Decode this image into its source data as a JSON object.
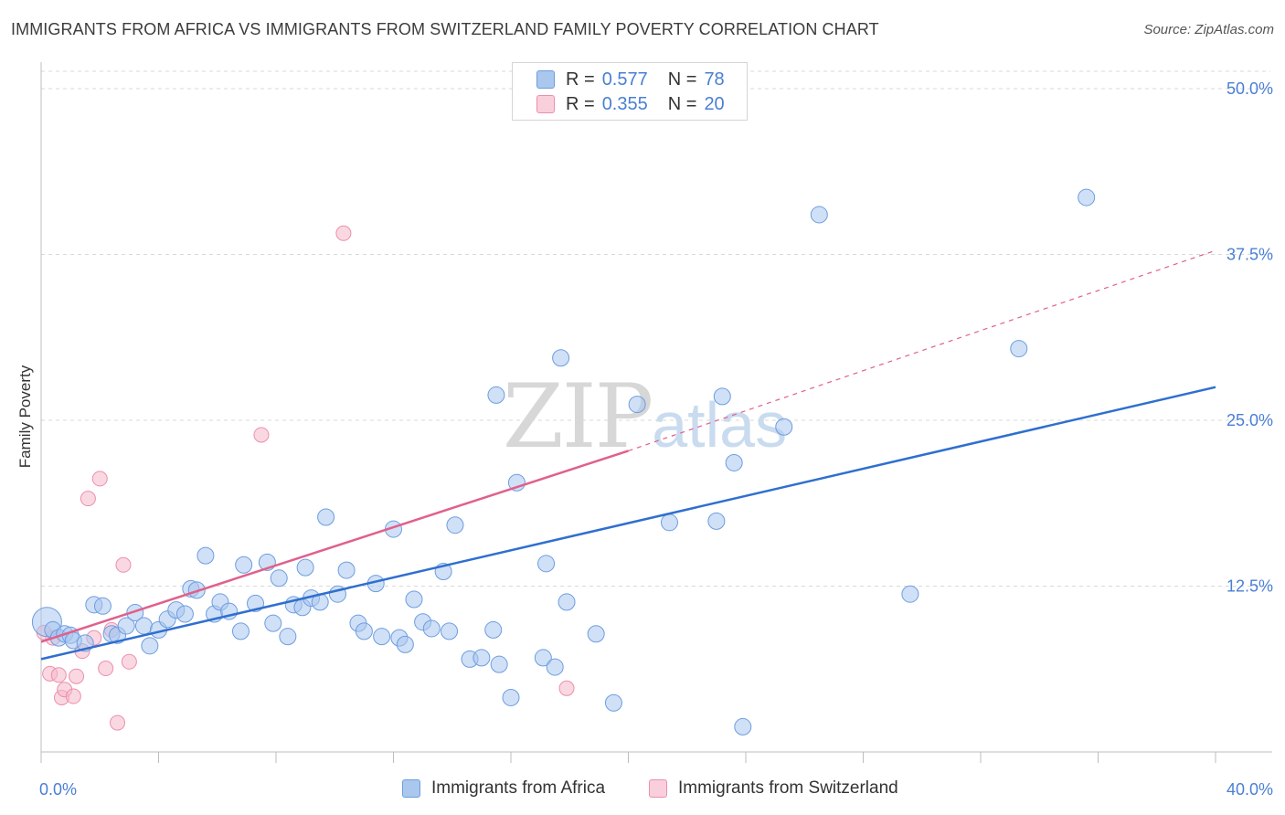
{
  "title": "IMMIGRANTS FROM AFRICA VS IMMIGRANTS FROM SWITZERLAND FAMILY POVERTY CORRELATION CHART",
  "source": "Source: ZipAtlas.com",
  "watermark": {
    "zip": "ZIP",
    "atlas": "atlas"
  },
  "legend_top": [
    {
      "r_label": "R =",
      "r_value": "0.577",
      "n_label": "N =",
      "n_value": "78"
    },
    {
      "r_label": "R =",
      "r_value": "0.355",
      "n_label": "N =",
      "n_value": "20"
    }
  ],
  "colors": {
    "africa_fill": "#aac7ee",
    "africa_stroke": "#6d9de0",
    "africa_line": "#2f6fcf",
    "swiss_fill": "#f6b8ca",
    "swiss_stroke": "#ec8fab",
    "swiss_line": "#e0608c",
    "tick_label": "#4a7fd4",
    "grid": "#d9d9d9"
  },
  "chart_data": {
    "type": "scatter",
    "title": "IMMIGRANTS FROM AFRICA VS IMMIGRANTS FROM SWITZERLAND FAMILY POVERTY CORRELATION CHART",
    "xlabel": "",
    "ylabel": "Family Poverty",
    "xlim": [
      0,
      40
    ],
    "ylim": [
      0,
      50
    ],
    "x_tick_labels": [
      "0.0%",
      "40.0%"
    ],
    "y_ticks": [
      12.5,
      25.0,
      37.5,
      50.0
    ],
    "y_tick_labels": [
      "12.5%",
      "25.0%",
      "37.5%",
      "50.0%"
    ],
    "grid": "horizontal dashed",
    "legend_position": "top-center and bottom",
    "series": [
      {
        "name": "Immigrants from Africa",
        "R": 0.577,
        "N": 78,
        "trend": {
          "x": [
            0,
            40
          ],
          "y": [
            7.0,
            27.5
          ],
          "style": "solid"
        },
        "points": [
          [
            0.2,
            9.8
          ],
          [
            0.4,
            9.2
          ],
          [
            0.6,
            8.6
          ],
          [
            0.8,
            8.9
          ],
          [
            1.0,
            8.8
          ],
          [
            1.1,
            8.4
          ],
          [
            1.5,
            8.2
          ],
          [
            1.8,
            11.1
          ],
          [
            2.1,
            11.0
          ],
          [
            2.4,
            8.9
          ],
          [
            2.6,
            8.8
          ],
          [
            2.9,
            9.5
          ],
          [
            3.2,
            10.5
          ],
          [
            3.5,
            9.5
          ],
          [
            3.7,
            8.0
          ],
          [
            4.0,
            9.2
          ],
          [
            4.3,
            10.0
          ],
          [
            4.6,
            10.7
          ],
          [
            4.9,
            10.4
          ],
          [
            5.1,
            12.3
          ],
          [
            5.3,
            12.2
          ],
          [
            5.6,
            14.8
          ],
          [
            5.9,
            10.4
          ],
          [
            6.1,
            11.3
          ],
          [
            6.4,
            10.6
          ],
          [
            6.8,
            9.1
          ],
          [
            6.9,
            14.1
          ],
          [
            7.3,
            11.2
          ],
          [
            7.7,
            14.3
          ],
          [
            7.9,
            9.7
          ],
          [
            8.1,
            13.1
          ],
          [
            8.4,
            8.7
          ],
          [
            8.6,
            11.1
          ],
          [
            8.9,
            10.9
          ],
          [
            9.0,
            13.9
          ],
          [
            9.2,
            11.6
          ],
          [
            9.5,
            11.3
          ],
          [
            9.7,
            17.7
          ],
          [
            10.1,
            11.9
          ],
          [
            10.4,
            13.7
          ],
          [
            10.8,
            9.7
          ],
          [
            11.0,
            9.1
          ],
          [
            11.4,
            12.7
          ],
          [
            11.6,
            8.7
          ],
          [
            12.0,
            16.8
          ],
          [
            12.2,
            8.6
          ],
          [
            12.4,
            8.1
          ],
          [
            12.7,
            11.5
          ],
          [
            13.0,
            9.8
          ],
          [
            13.3,
            9.3
          ],
          [
            13.7,
            13.6
          ],
          [
            13.9,
            9.1
          ],
          [
            14.1,
            17.1
          ],
          [
            14.6,
            7.0
          ],
          [
            15.0,
            7.1
          ],
          [
            15.4,
            9.2
          ],
          [
            15.5,
            26.9
          ],
          [
            15.6,
            6.6
          ],
          [
            16.0,
            4.1
          ],
          [
            16.2,
            20.3
          ],
          [
            17.1,
            7.1
          ],
          [
            17.2,
            14.2
          ],
          [
            17.5,
            6.4
          ],
          [
            17.7,
            29.7
          ],
          [
            17.9,
            11.3
          ],
          [
            18.9,
            8.9
          ],
          [
            19.5,
            3.7
          ],
          [
            20.3,
            26.2
          ],
          [
            21.4,
            17.3
          ],
          [
            23.0,
            17.4
          ],
          [
            23.2,
            26.8
          ],
          [
            23.6,
            21.8
          ],
          [
            23.9,
            1.9
          ],
          [
            25.3,
            24.5
          ],
          [
            26.5,
            40.5
          ],
          [
            29.6,
            11.9
          ],
          [
            33.3,
            30.4
          ],
          [
            35.6,
            41.8
          ]
        ]
      },
      {
        "name": "Immigrants from Switzerland",
        "R": 0.355,
        "N": 20,
        "trend": {
          "x": [
            0,
            20
          ],
          "y": [
            8.3,
            22.7
          ],
          "style": "solid",
          "extended_to": {
            "x": 40,
            "y": 37.8,
            "style": "dashed"
          }
        },
        "points": [
          [
            0.3,
            5.9
          ],
          [
            0.4,
            8.6
          ],
          [
            0.6,
            5.8
          ],
          [
            0.7,
            4.1
          ],
          [
            0.8,
            4.7
          ],
          [
            1.1,
            4.2
          ],
          [
            1.2,
            5.7
          ],
          [
            1.4,
            7.6
          ],
          [
            1.6,
            19.1
          ],
          [
            1.8,
            8.6
          ],
          [
            2.0,
            20.6
          ],
          [
            2.2,
            6.3
          ],
          [
            2.4,
            9.2
          ],
          [
            2.6,
            2.2
          ],
          [
            2.8,
            14.1
          ],
          [
            3.0,
            6.8
          ],
          [
            7.5,
            23.9
          ],
          [
            10.3,
            39.1
          ],
          [
            17.9,
            4.8
          ],
          [
            0.1,
            9.0
          ]
        ]
      }
    ]
  },
  "bottom_legend": [
    "Immigrants from Africa",
    "Immigrants from Switzerland"
  ]
}
